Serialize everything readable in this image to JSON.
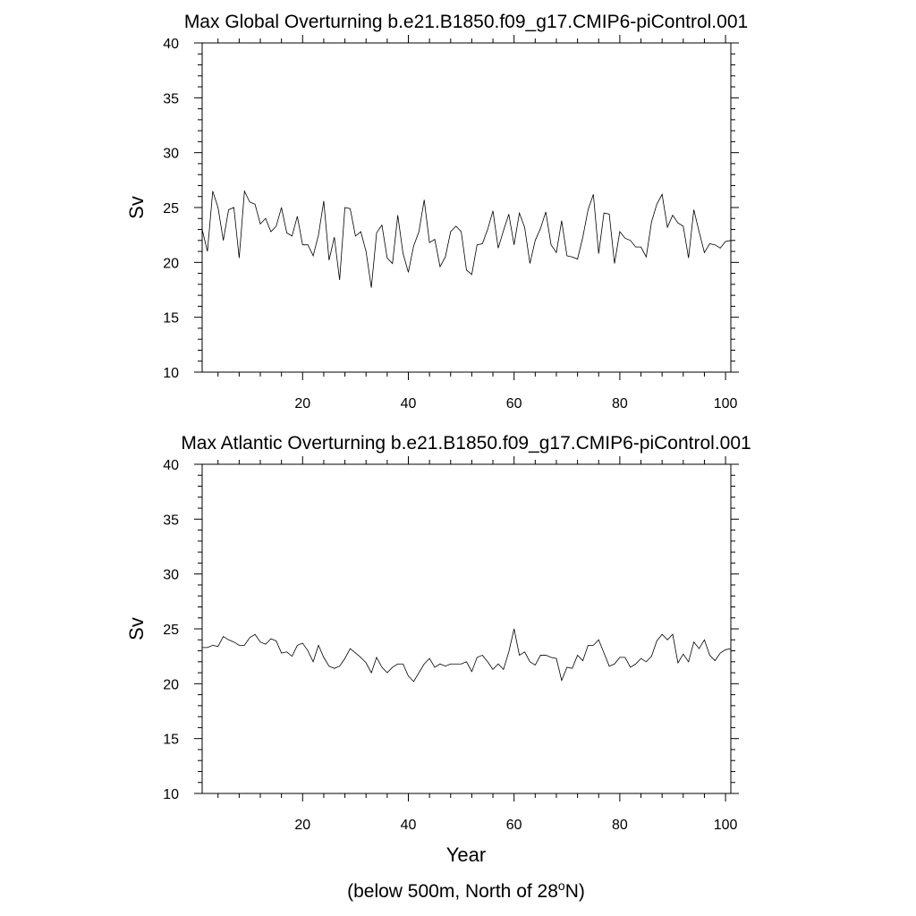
{
  "chart_data": [
    {
      "type": "line",
      "title": "Max Global Overturning b.e21.B1850.f09_g17.CMIP6-piControl.001",
      "xlabel": "",
      "ylabel": "Sv",
      "xlim": [
        1,
        101
      ],
      "ylim": [
        10,
        40
      ],
      "xticks": [
        20,
        40,
        60,
        80,
        100
      ],
      "yticks": [
        10,
        15,
        20,
        25,
        30,
        35,
        40
      ],
      "x": [
        1,
        2,
        3,
        4,
        5,
        6,
        7,
        8,
        9,
        10,
        11,
        12,
        13,
        14,
        15,
        16,
        17,
        18,
        19,
        20,
        21,
        22,
        23,
        24,
        25,
        26,
        27,
        28,
        29,
        30,
        31,
        32,
        33,
        34,
        35,
        36,
        37,
        38,
        39,
        40,
        41,
        42,
        43,
        44,
        45,
        46,
        47,
        48,
        49,
        50,
        51,
        52,
        53,
        54,
        55,
        56,
        57,
        58,
        59,
        60,
        61,
        62,
        63,
        64,
        65,
        66,
        67,
        68,
        69,
        70,
        71,
        72,
        73,
        74,
        75,
        76,
        77,
        78,
        79,
        80,
        81,
        82,
        83,
        84,
        85,
        86,
        87,
        88,
        89,
        90,
        91,
        92,
        93,
        94,
        95,
        96,
        97,
        98,
        99,
        100,
        101
      ],
      "series": [
        {
          "values": [
            23.0,
            21.0,
            26.5,
            25.0,
            22.0,
            24.8,
            25.0,
            20.4,
            26.5,
            25.5,
            25.3,
            23.5,
            24.0,
            22.8,
            23.3,
            25.0,
            22.7,
            22.4,
            24.2,
            21.6,
            21.6,
            20.6,
            22.5,
            25.6,
            20.2,
            22.3,
            18.4,
            25.0,
            24.9,
            22.4,
            22.8,
            21.0,
            17.7,
            22.7,
            23.4,
            20.4,
            19.9,
            24.3,
            20.8,
            19.1,
            21.5,
            22.8,
            25.7,
            21.8,
            22.1,
            19.6,
            20.5,
            22.8,
            23.3,
            22.8,
            19.3,
            18.9,
            21.6,
            21.7,
            23.0,
            24.7,
            21.3,
            22.9,
            24.4,
            21.6,
            24.5,
            23.2,
            19.9,
            22.0,
            23.1,
            24.6,
            21.6,
            20.9,
            23.8,
            20.6,
            20.5,
            20.3,
            22.3,
            24.8,
            26.2,
            20.8,
            24.5,
            24.4,
            19.9,
            22.8,
            22.2,
            22.0,
            21.4,
            21.4,
            20.5,
            23.7,
            25.3,
            26.2,
            23.2,
            24.3,
            23.6,
            23.3,
            20.4,
            24.8,
            22.8,
            20.9,
            21.7,
            21.6,
            21.3,
            21.9,
            22.0
          ]
        }
      ]
    },
    {
      "type": "line",
      "title": "Max Atlantic Overturning b.e21.B1850.f09_g17.CMIP6-piControl.001",
      "xlabel": "Year",
      "ylabel": "Sv",
      "xlim": [
        1,
        101
      ],
      "ylim": [
        10,
        40
      ],
      "xticks": [
        20,
        40,
        60,
        80,
        100
      ],
      "yticks": [
        10,
        15,
        20,
        25,
        30,
        35,
        40
      ],
      "x": [
        1,
        2,
        3,
        4,
        5,
        6,
        7,
        8,
        9,
        10,
        11,
        12,
        13,
        14,
        15,
        16,
        17,
        18,
        19,
        20,
        21,
        22,
        23,
        24,
        25,
        26,
        27,
        28,
        29,
        30,
        31,
        32,
        33,
        34,
        35,
        36,
        37,
        38,
        39,
        40,
        41,
        42,
        43,
        44,
        45,
        46,
        47,
        48,
        49,
        50,
        51,
        52,
        53,
        54,
        55,
        56,
        57,
        58,
        59,
        60,
        61,
        62,
        63,
        64,
        65,
        66,
        67,
        68,
        69,
        70,
        71,
        72,
        73,
        74,
        75,
        76,
        77,
        78,
        79,
        80,
        81,
        82,
        83,
        84,
        85,
        86,
        87,
        88,
        89,
        90,
        91,
        92,
        93,
        94,
        95,
        96,
        97,
        98,
        99,
        100,
        101
      ],
      "series": [
        {
          "values": [
            23.3,
            23.3,
            23.5,
            23.4,
            24.3,
            24.0,
            23.8,
            23.5,
            23.5,
            24.2,
            24.5,
            23.8,
            23.6,
            24.1,
            23.9,
            22.8,
            22.9,
            22.5,
            23.5,
            23.7,
            23.0,
            22.0,
            23.5,
            22.4,
            21.6,
            21.4,
            21.6,
            22.3,
            23.2,
            22.8,
            22.4,
            21.9,
            21.0,
            22.4,
            21.5,
            21.0,
            21.5,
            21.8,
            21.8,
            20.7,
            20.2,
            21.0,
            21.8,
            22.3,
            21.5,
            21.8,
            21.6,
            21.8,
            21.8,
            21.8,
            22.0,
            21.1,
            22.4,
            22.6,
            22.0,
            21.3,
            21.8,
            21.3,
            22.9,
            25.0,
            22.6,
            22.9,
            22.0,
            21.7,
            22.6,
            22.6,
            22.4,
            22.3,
            20.3,
            21.5,
            21.4,
            22.6,
            22.1,
            23.5,
            23.5,
            24.0,
            22.8,
            21.6,
            21.8,
            22.4,
            22.4,
            21.5,
            21.8,
            22.3,
            22.0,
            22.5,
            23.9,
            24.5,
            24.0,
            24.5,
            21.9,
            22.7,
            22.0,
            23.8,
            23.2,
            24.0,
            22.6,
            22.1,
            22.8,
            23.1,
            23.2
          ]
        }
      ]
    }
  ],
  "footnote": {
    "text": "(below 500m, North of 28",
    "superscript": "o",
    "suffix": "N)"
  }
}
